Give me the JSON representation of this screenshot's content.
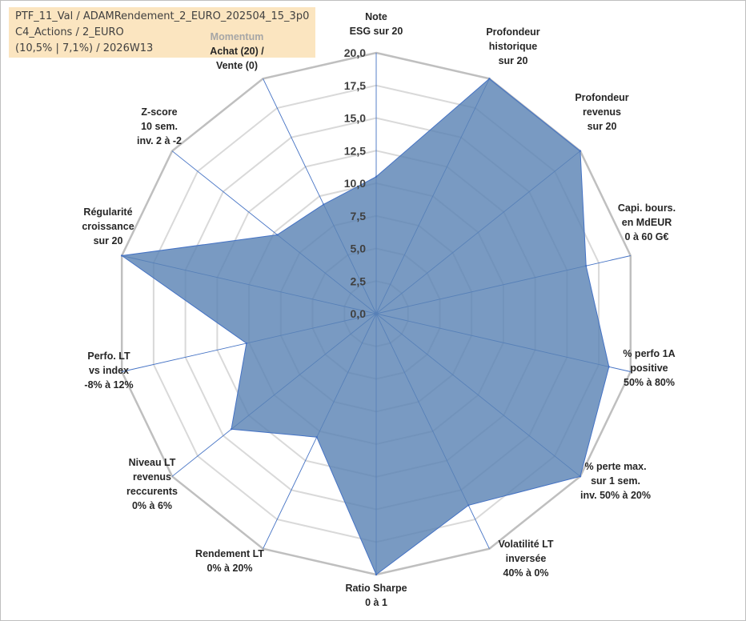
{
  "info": {
    "line1": "PTF_11_Val / ADAMRendement_2_EURO_202504_15_3p0",
    "line2": "C4_Actions / 2_EURO",
    "line3": "(10,5% | 7,1%) / 2026W13"
  },
  "colors": {
    "fill": "#5b84b5",
    "stroke": "#4472c4",
    "grid": "#c8c8c8",
    "spoke": "#4472c4"
  },
  "chart_data": {
    "type": "radar",
    "title": "",
    "rmin": 0,
    "rmax": 20,
    "step": 2.5,
    "tick_labels": [
      "0,0",
      "2,5",
      "5,0",
      "7,5",
      "10,0",
      "12,5",
      "15,0",
      "17,5",
      "20,0"
    ],
    "axes": [
      {
        "lines": [
          "Note",
          "ESG sur 20"
        ],
        "value": 10.5
      },
      {
        "lines": [
          "Profondeur",
          "historique",
          "sur 20"
        ],
        "value": 20
      },
      {
        "lines": [
          "Profondeur",
          "revenus",
          "sur 20"
        ],
        "value": 20
      },
      {
        "lines": [
          "Capi. bours.",
          "en MdEUR",
          "0 à 60 G€"
        ],
        "value": 16.5
      },
      {
        "lines": [
          "% perfo 1A",
          "positive",
          "50% à 80%"
        ],
        "value": 18.3
      },
      {
        "lines": [
          "% perte max.",
          "sur 1 sem.",
          "inv. 50% à 20%"
        ],
        "value": 20
      },
      {
        "lines": [
          "Volatilité LT",
          "inversée",
          "40% à 0%"
        ],
        "value": 16.3
      },
      {
        "lines": [
          "Ratio Sharpe",
          "0 à 1"
        ],
        "value": 20
      },
      {
        "lines": [
          "Rendement LT",
          "0% à 20%"
        ],
        "value": 10.5
      },
      {
        "lines": [
          "Niveau LT",
          "revenus",
          "reccurents",
          "0% à 6%"
        ],
        "value": 14.2
      },
      {
        "lines": [
          "Perfo. LT",
          "vs index",
          "-8% à 12%"
        ],
        "value": 10.2
      },
      {
        "lines": [
          "Régularité",
          "croissance",
          "sur 20"
        ],
        "value": 20
      },
      {
        "lines": [
          "Z-score",
          "10 sem.",
          "inv. 2 à -2"
        ],
        "value": 9.7
      },
      {
        "lines": [
          "Momentum",
          "Achat (20) /",
          "Vente (0)"
        ],
        "value": 9.3
      }
    ],
    "series": [
      {
        "name": "PTF_11_Val"
      }
    ]
  }
}
